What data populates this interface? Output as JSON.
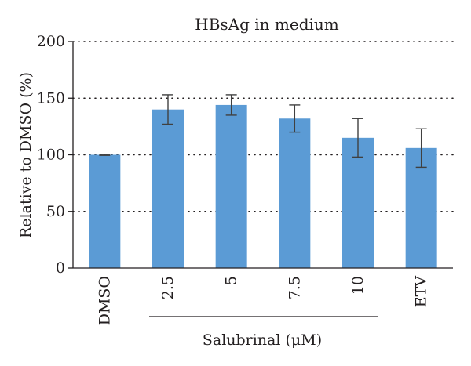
{
  "chart_data": {
    "type": "bar",
    "title": "HBsAg in medium",
    "ylabel": "Relative to DMSO (%)",
    "xlabel": "",
    "group_label": "Salubrinal (μM)",
    "group_members": [
      "2.5",
      "5",
      "7.5",
      "10"
    ],
    "categories": [
      "DMSO",
      "2.5",
      "5",
      "7.5",
      "10",
      "ETV"
    ],
    "values": [
      100,
      140,
      144,
      132,
      115,
      106
    ],
    "errors": [
      0.5,
      13,
      9,
      12,
      17,
      17
    ],
    "ylim": [
      0,
      200
    ],
    "yticks": [
      0,
      50,
      100,
      150,
      200
    ],
    "grid": "dotted horizontal",
    "legend": "none",
    "colors": {
      "bar": "#5b9bd5",
      "error_bar": "#404040",
      "axis": "#231f20",
      "grid": "#231f20"
    }
  }
}
